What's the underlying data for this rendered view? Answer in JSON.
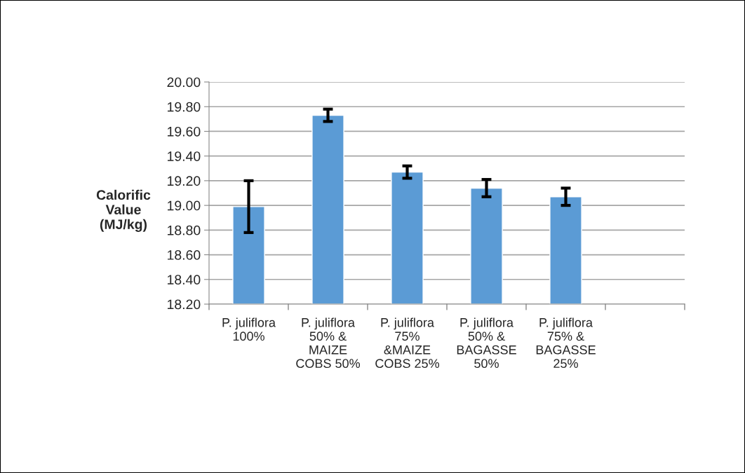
{
  "chart_data": {
    "type": "bar",
    "ylabel": "Calorific\nValue\n(MJ/kg)",
    "categories": [
      "P. juliflora\n100%",
      "P. juliflora\n50% &\nMAIZE\nCOBS 50%",
      "P. juliflora\n75%\n&MAIZE\nCOBS 25%",
      "P. juliflora\n50% &\nBAGASSE\n50%",
      "P. juliflora\n75% &\nBAGASSE\n25%",
      null
    ],
    "values": [
      18.99,
      19.73,
      19.27,
      19.14,
      19.07,
      null
    ],
    "errors": [
      0.21,
      0.05,
      0.05,
      0.07,
      0.07,
      null
    ],
    "color": "#5b9bd5",
    "ylim": [
      18.2,
      20.0
    ],
    "yticks": [
      {
        "value": 18.2,
        "label": "18.20"
      },
      {
        "value": 18.4,
        "label": "18.40"
      },
      {
        "value": 18.6,
        "label": "18.60"
      },
      {
        "value": 18.8,
        "label": "18.80"
      },
      {
        "value": 19.0,
        "label": "19.00"
      },
      {
        "value": 19.2,
        "label": "19.20"
      },
      {
        "value": 19.4,
        "label": "19.40"
      },
      {
        "value": 19.6,
        "label": "19.60"
      },
      {
        "value": 19.8,
        "label": "19.80"
      },
      {
        "value": 20.0,
        "label": "20.00"
      }
    ],
    "grid": "y",
    "legend": false
  }
}
